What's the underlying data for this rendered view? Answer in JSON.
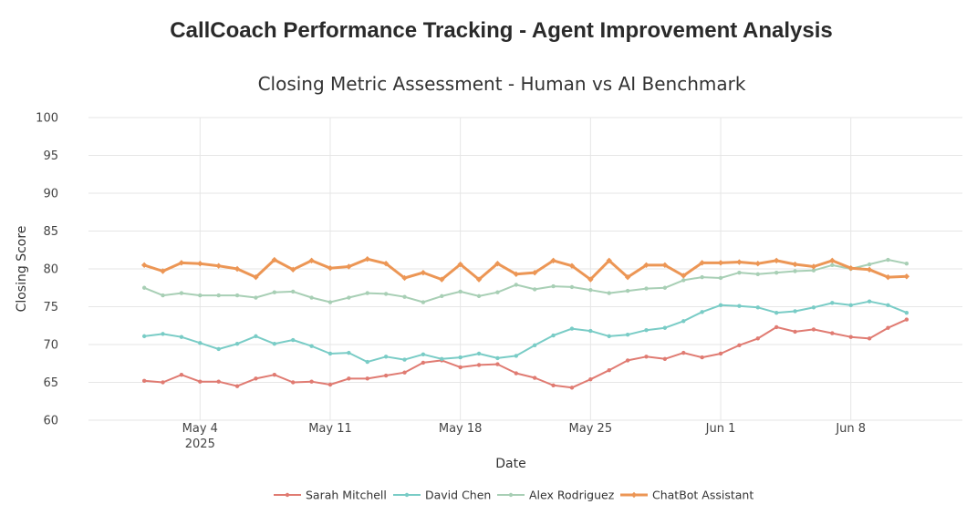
{
  "page": {
    "main_title": "CallCoach Performance Tracking - Agent Improvement Analysis"
  },
  "chart_data": {
    "type": "line",
    "title": "Closing Metric Assessment - Human vs AI Benchmark",
    "xlabel": "Date",
    "ylabel": "Closing Score",
    "ylim": [
      60,
      100
    ],
    "yticks": [
      60,
      65,
      70,
      75,
      80,
      85,
      90,
      95,
      100
    ],
    "xlim": [
      "2025-04-28",
      "2025-06-14"
    ],
    "xticks": [
      {
        "date": "2025-05-04",
        "label": "May 4",
        "sublabel": "2025"
      },
      {
        "date": "2025-05-11",
        "label": "May 11",
        "sublabel": ""
      },
      {
        "date": "2025-05-18",
        "label": "May 18",
        "sublabel": ""
      },
      {
        "date": "2025-05-25",
        "label": "May 25",
        "sublabel": ""
      },
      {
        "date": "2025-06-01",
        "label": "Jun 1",
        "sublabel": ""
      },
      {
        "date": "2025-06-08",
        "label": "Jun 8",
        "sublabel": ""
      }
    ],
    "grid": true,
    "legend_position": "bottom",
    "x": [
      "2025-05-01",
      "2025-05-02",
      "2025-05-03",
      "2025-05-04",
      "2025-05-05",
      "2025-05-06",
      "2025-05-07",
      "2025-05-08",
      "2025-05-09",
      "2025-05-10",
      "2025-05-11",
      "2025-05-12",
      "2025-05-13",
      "2025-05-14",
      "2025-05-15",
      "2025-05-16",
      "2025-05-17",
      "2025-05-18",
      "2025-05-19",
      "2025-05-20",
      "2025-05-21",
      "2025-05-22",
      "2025-05-23",
      "2025-05-24",
      "2025-05-25",
      "2025-05-26",
      "2025-05-27",
      "2025-05-28",
      "2025-05-29",
      "2025-05-30",
      "2025-05-31",
      "2025-06-01",
      "2025-06-02",
      "2025-06-03",
      "2025-06-04",
      "2025-06-05",
      "2025-06-06",
      "2025-06-07",
      "2025-06-08",
      "2025-06-09",
      "2025-06-10",
      "2025-06-11"
    ],
    "series": [
      {
        "name": "Sarah Mitchell",
        "color": "#e07b72",
        "width": 2,
        "marker_r": 2.2,
        "values": [
          65.2,
          65.0,
          66.0,
          65.1,
          65.1,
          64.5,
          65.5,
          66.0,
          65.0,
          65.1,
          64.7,
          65.5,
          65.5,
          65.9,
          66.3,
          67.6,
          67.9,
          67.0,
          67.3,
          67.4,
          66.2,
          65.6,
          64.6,
          64.3,
          65.4,
          66.6,
          67.9,
          68.4,
          68.1,
          68.9,
          68.3,
          68.8,
          69.9,
          70.8,
          72.3,
          71.7,
          72.0,
          71.5,
          71.0,
          70.8,
          72.2,
          73.3
        ]
      },
      {
        "name": "David Chen",
        "color": "#79ccc6",
        "width": 2,
        "marker_r": 2.2,
        "values": [
          71.1,
          71.4,
          71.0,
          70.2,
          69.4,
          70.1,
          71.1,
          70.1,
          70.6,
          69.8,
          68.8,
          68.9,
          67.7,
          68.4,
          68.0,
          68.7,
          68.1,
          68.3,
          68.8,
          68.2,
          68.5,
          69.9,
          71.2,
          72.1,
          71.8,
          71.1,
          71.3,
          71.9,
          72.2,
          73.1,
          74.3,
          75.2,
          75.1,
          74.9,
          74.2,
          74.4,
          74.9,
          75.5,
          75.2,
          75.7,
          75.2,
          74.2
        ]
      },
      {
        "name": "Alex Rodriguez",
        "color": "#a8cfb5",
        "width": 2,
        "marker_r": 2.2,
        "values": [
          77.5,
          76.5,
          76.8,
          76.5,
          76.5,
          76.5,
          76.2,
          76.9,
          77.0,
          76.2,
          75.6,
          76.2,
          76.8,
          76.7,
          76.3,
          75.6,
          76.4,
          77.0,
          76.4,
          76.9,
          77.9,
          77.3,
          77.7,
          77.6,
          77.2,
          76.8,
          77.1,
          77.4,
          77.5,
          78.5,
          78.9,
          78.8,
          79.5,
          79.3,
          79.5,
          79.7,
          79.8,
          80.5,
          80.0,
          80.6,
          81.2,
          80.7
        ]
      },
      {
        "name": "ChatBot Assistant",
        "color": "#ec9655",
        "width": 3,
        "marker_r": 3.2,
        "diamond": true,
        "values": [
          80.5,
          79.7,
          80.8,
          80.7,
          80.4,
          80.0,
          78.9,
          81.2,
          79.9,
          81.1,
          80.1,
          80.3,
          81.3,
          80.7,
          78.8,
          79.5,
          78.6,
          80.6,
          78.6,
          80.7,
          79.3,
          79.5,
          81.1,
          80.4,
          78.6,
          81.1,
          78.9,
          80.5,
          80.5,
          79.1,
          80.8,
          80.8,
          80.9,
          80.7,
          81.1,
          80.6,
          80.3,
          81.1,
          80.1,
          79.9,
          78.9,
          79.0
        ]
      }
    ]
  }
}
